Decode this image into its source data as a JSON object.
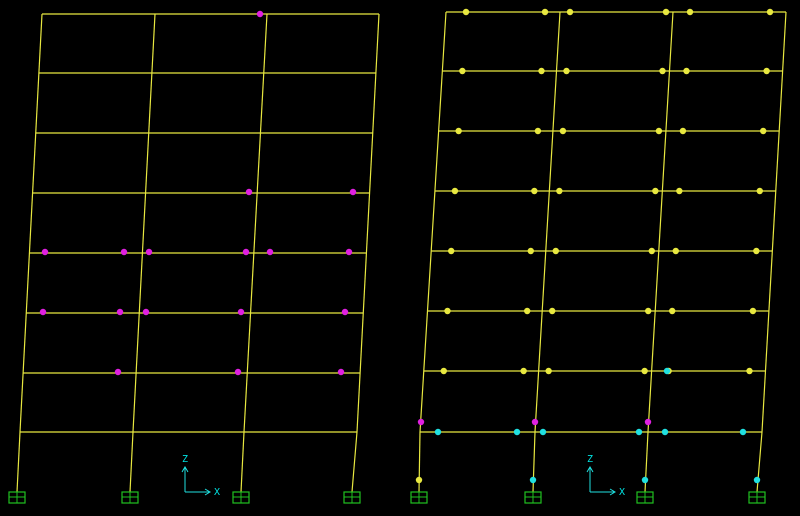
{
  "axes": [
    {
      "z_label": "Z",
      "x_label": "X"
    },
    {
      "z_label": "Z",
      "x_label": "X"
    }
  ]
}
